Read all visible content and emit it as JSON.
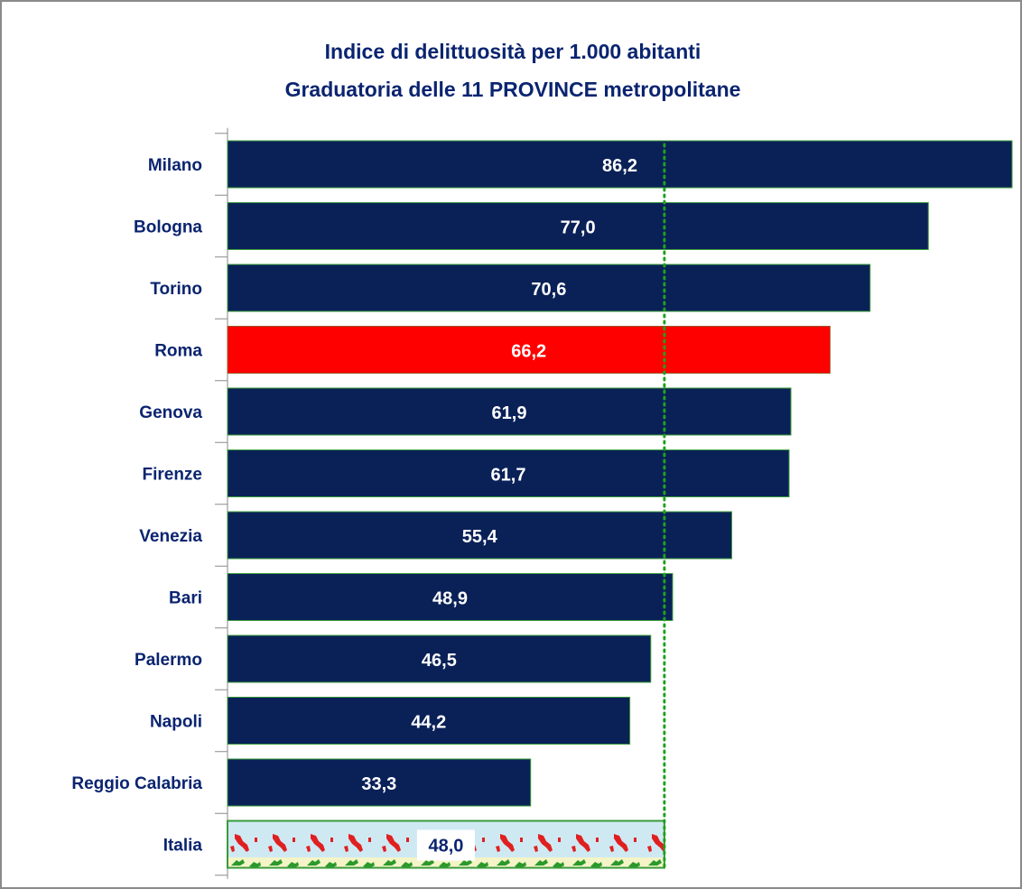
{
  "chart_data": {
    "type": "bar",
    "orientation": "horizontal",
    "title_line1": "Indice di delittuosità per  1.000 abitanti",
    "title_line2": "Graduatoria delle 11 PROVINCE metropolitane",
    "categories": [
      "Milano",
      "Bologna",
      "Torino",
      "Roma",
      "Genova",
      "Firenze",
      "Venezia",
      "Bari",
      "Palermo",
      "Napoli",
      "Reggio Calabria",
      "Italia"
    ],
    "values": [
      86.2,
      77.0,
      70.6,
      66.2,
      61.9,
      61.7,
      55.4,
      48.9,
      46.5,
      44.2,
      33.3,
      48.0
    ],
    "value_labels": [
      "86,2",
      "77,0",
      "70,6",
      "66,2",
      "61,9",
      "61,7",
      "55,4",
      "48,9",
      "46,5",
      "44,2",
      "33,3",
      "48,0"
    ],
    "highlight_category": "Roma",
    "reference_category": "Italia",
    "reference_line_value": 48.0,
    "reference_line_style": "dotted",
    "xlim": [
      0,
      86.2
    ],
    "grid": false,
    "legend": "none",
    "colors": {
      "bar": "#0a2158",
      "highlight": "#ff0000",
      "bar_border": "#3a9a3a",
      "reference_line": "#1fa01f",
      "reference_bar_bg": "#cfe9f3",
      "text": "#0a2470"
    }
  }
}
